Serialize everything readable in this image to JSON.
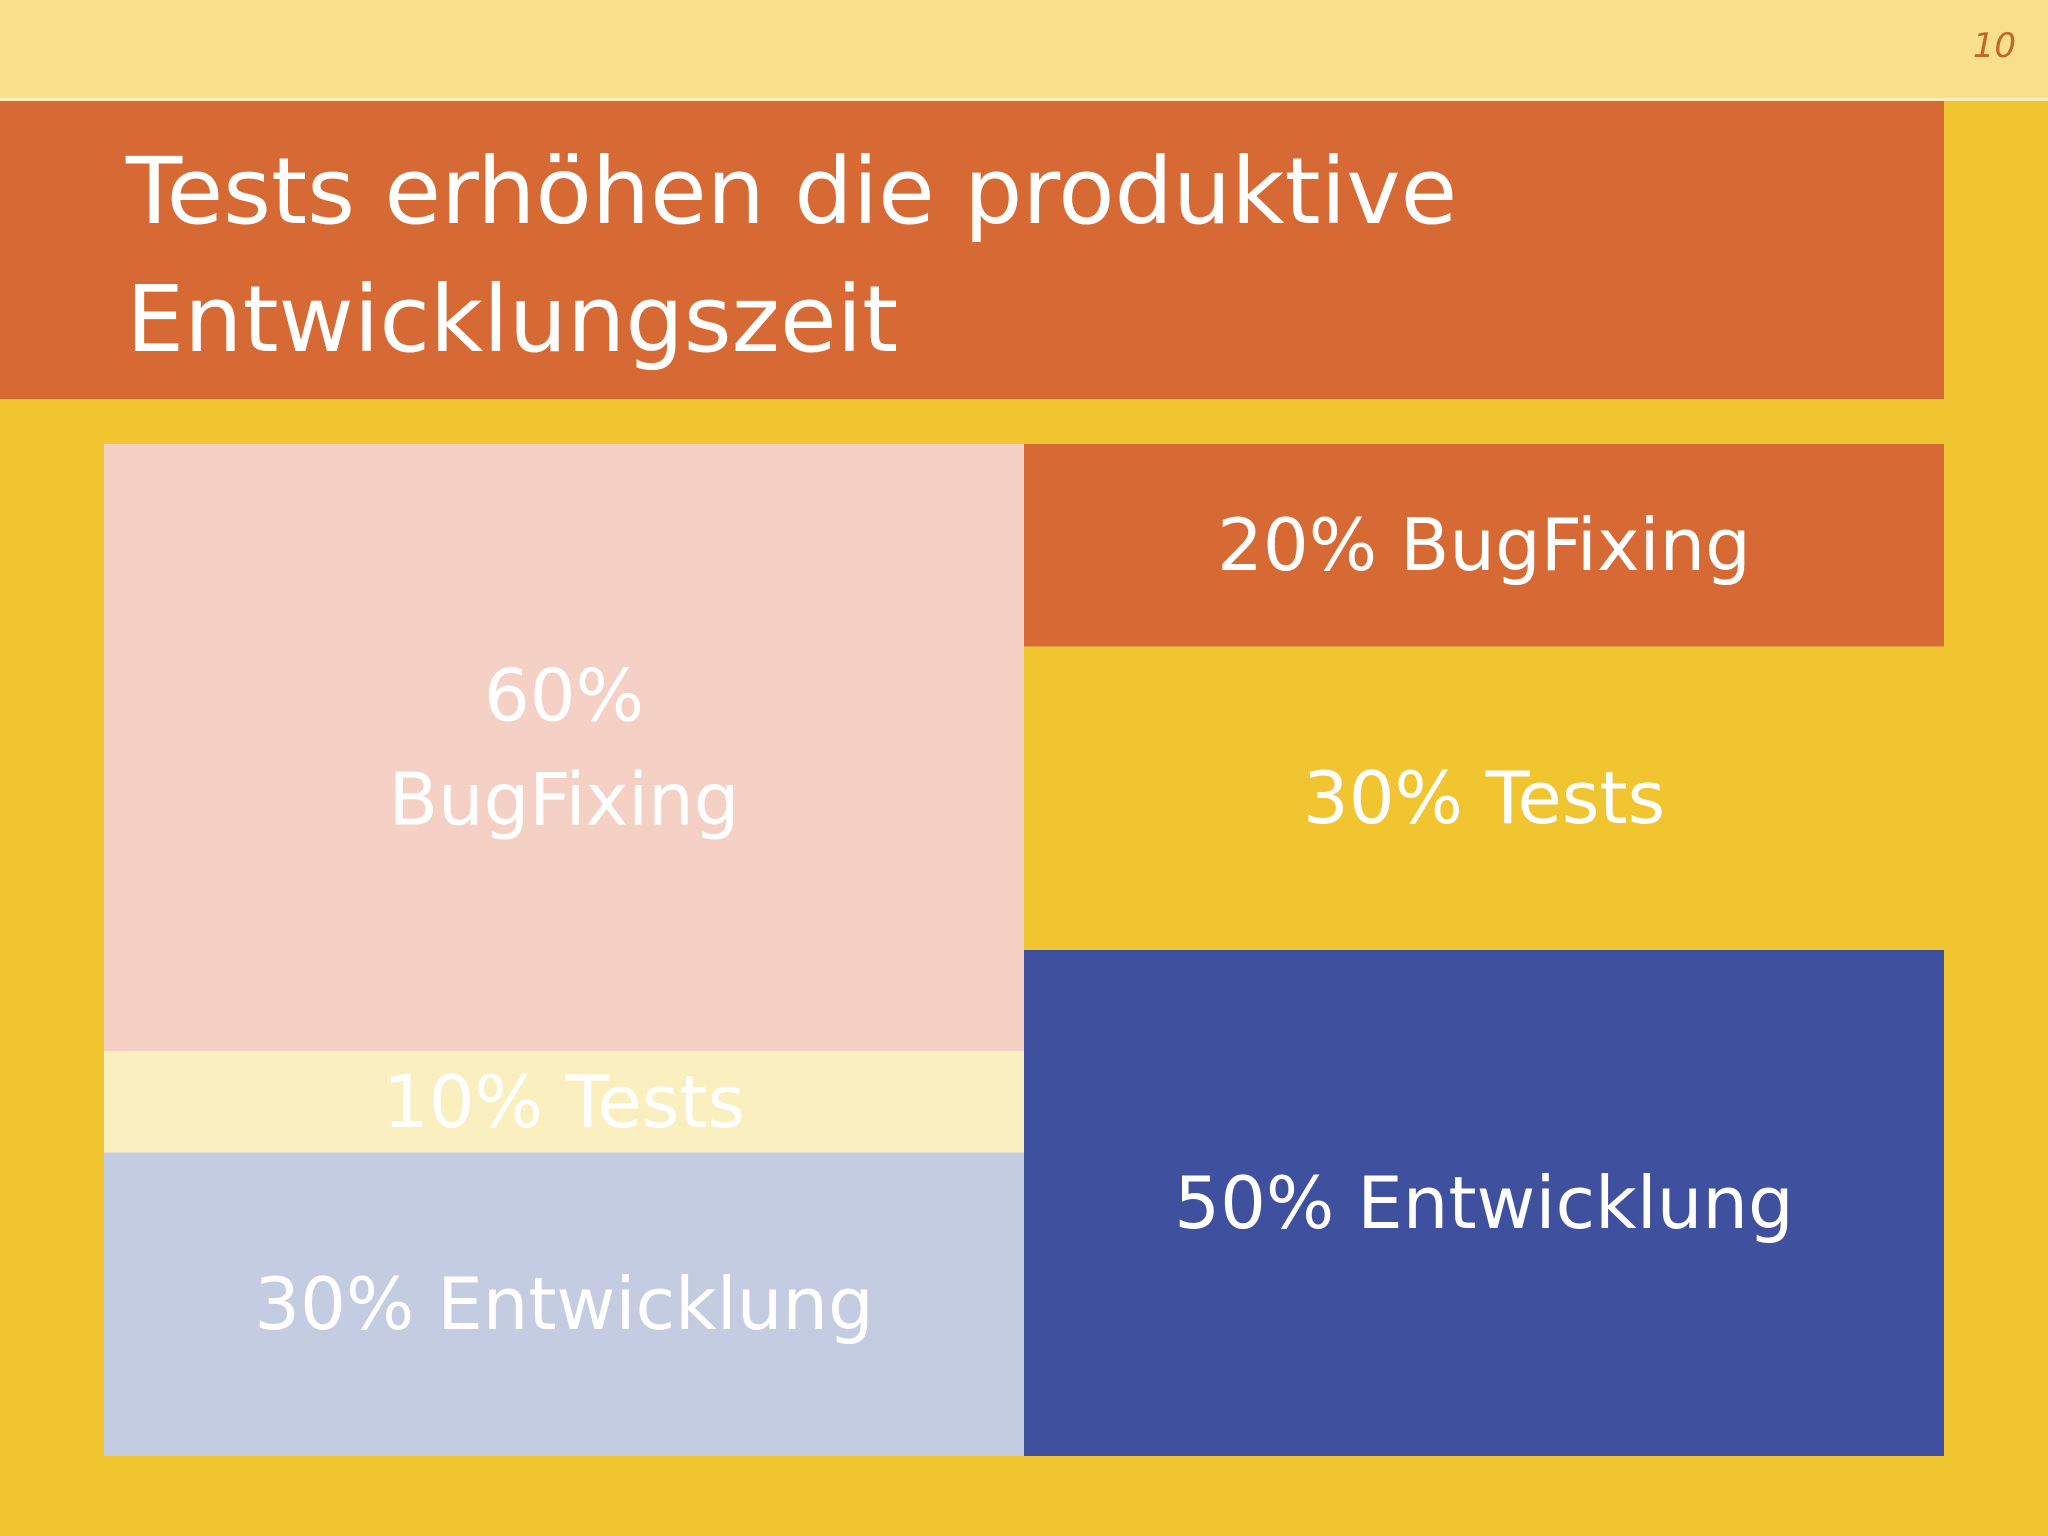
{
  "slide": {
    "number": "10",
    "title": "Tests erhöhen die produktive Entwicklungszeit"
  },
  "colors": {
    "background": "#f0c530",
    "header_band": "#f7df8c",
    "accent_orange": "#d76a34",
    "text": "#ffffff"
  },
  "chart_data": {
    "type": "bar",
    "stacked": true,
    "categories": [
      "",
      ""
    ],
    "series": [
      {
        "values": [
          30,
          50
        ],
        "labels": [
          "30% Entwicklung",
          "50% Entwicklung"
        ],
        "colors": [
          "#c4cce2",
          "#3f519e"
        ]
      },
      {
        "values": [
          10,
          30
        ],
        "labels": [
          "10% Tests",
          "30% Tests"
        ],
        "colors": [
          "#faefbe",
          "#f0c530"
        ]
      },
      {
        "values": [
          60,
          20
        ],
        "labels": [
          "60%\nBugFixing",
          "20% BugFixing"
        ],
        "colors": [
          "#f4d1c4",
          "#d76a34"
        ]
      }
    ],
    "ylim": [
      0,
      100
    ],
    "grid": false,
    "legend": "none"
  }
}
